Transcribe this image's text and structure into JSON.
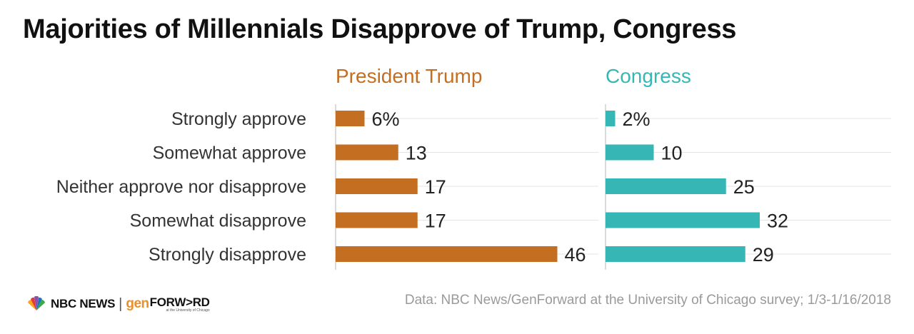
{
  "title": "Majorities of Millennials Disapprove of Trump, Congress",
  "chart_data": {
    "type": "bar",
    "orientation": "horizontal",
    "categories": [
      "Strongly approve",
      "Somewhat approve",
      "Neither approve nor disapprove",
      "Somewhat disapprove",
      "Strongly disapprove"
    ],
    "series": [
      {
        "name": "President Trump",
        "color": "#c46e22",
        "values": [
          6,
          13,
          17,
          17,
          46
        ],
        "labels": [
          "6%",
          "13",
          "17",
          "17",
          "46"
        ]
      },
      {
        "name": "Congress",
        "color": "#36b7b5",
        "values": [
          2,
          10,
          25,
          32,
          29
        ],
        "labels": [
          "2%",
          "10",
          "25",
          "32",
          "29"
        ]
      }
    ],
    "xlim": [
      0,
      100
    ],
    "grid": true
  },
  "footer": {
    "source": "Data: NBC News/GenForward at the University of Chicago survey; 1/3-1/16/2018",
    "logo_nbc": "NBC NEWS",
    "logo_sep": "|",
    "logo_gen": "gen",
    "logo_forward": "FORW>RD",
    "logo_uchicago": "at the University of Chicago"
  }
}
